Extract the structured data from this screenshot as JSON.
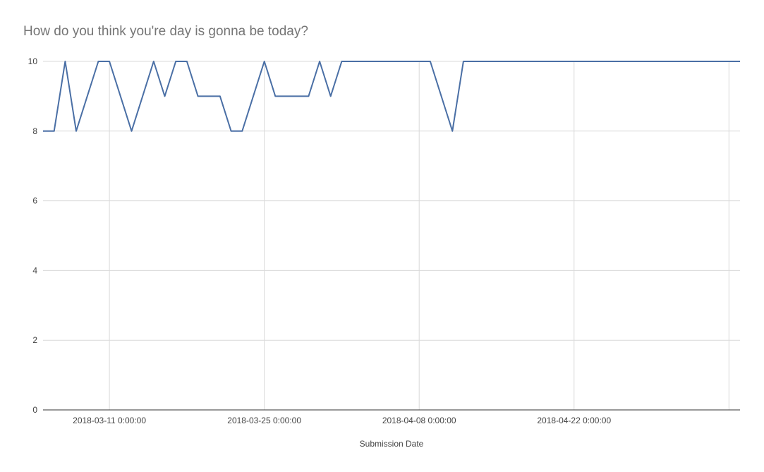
{
  "chart_data": {
    "type": "line",
    "title": "How do you think you're day is gonna be today?",
    "xlabel": "Submission Date",
    "ylabel": "",
    "x_type": "date",
    "xlim": [
      "2018-03-05",
      "2018-05-07"
    ],
    "ylim": [
      0,
      10
    ],
    "y_ticks": [
      0,
      2,
      4,
      6,
      8,
      10
    ],
    "x_ticks": [
      "2018-03-11",
      "2018-03-25",
      "2018-04-08",
      "2018-04-22",
      "2018-05-06"
    ],
    "x_tick_labels": [
      "2018-03-11 0:00:00",
      "2018-03-25 0:00:00",
      "2018-04-08 0:00:00",
      "2018-04-22 0:00:00",
      ""
    ],
    "grid": true,
    "legend": "none",
    "line_color": "#4a6fa5",
    "series": [
      {
        "points": [
          [
            "2018-03-05",
            8
          ],
          [
            "2018-03-06",
            8
          ],
          [
            "2018-03-07",
            10
          ],
          [
            "2018-03-08",
            8
          ],
          [
            "2018-03-10",
            10
          ],
          [
            "2018-03-11",
            10
          ],
          [
            "2018-03-13",
            8
          ],
          [
            "2018-03-15",
            10
          ],
          [
            "2018-03-16",
            9
          ],
          [
            "2018-03-17",
            10
          ],
          [
            "2018-03-18",
            10
          ],
          [
            "2018-03-19",
            9
          ],
          [
            "2018-03-21",
            9
          ],
          [
            "2018-03-22",
            8
          ],
          [
            "2018-03-23",
            8
          ],
          [
            "2018-03-25",
            10
          ],
          [
            "2018-03-26",
            9
          ],
          [
            "2018-03-29",
            9
          ],
          [
            "2018-03-30",
            10
          ],
          [
            "2018-03-31",
            9
          ],
          [
            "2018-04-01",
            10
          ],
          [
            "2018-04-09",
            10
          ],
          [
            "2018-04-11",
            8
          ],
          [
            "2018-04-12",
            10
          ],
          [
            "2018-05-07",
            10
          ]
        ]
      }
    ]
  }
}
